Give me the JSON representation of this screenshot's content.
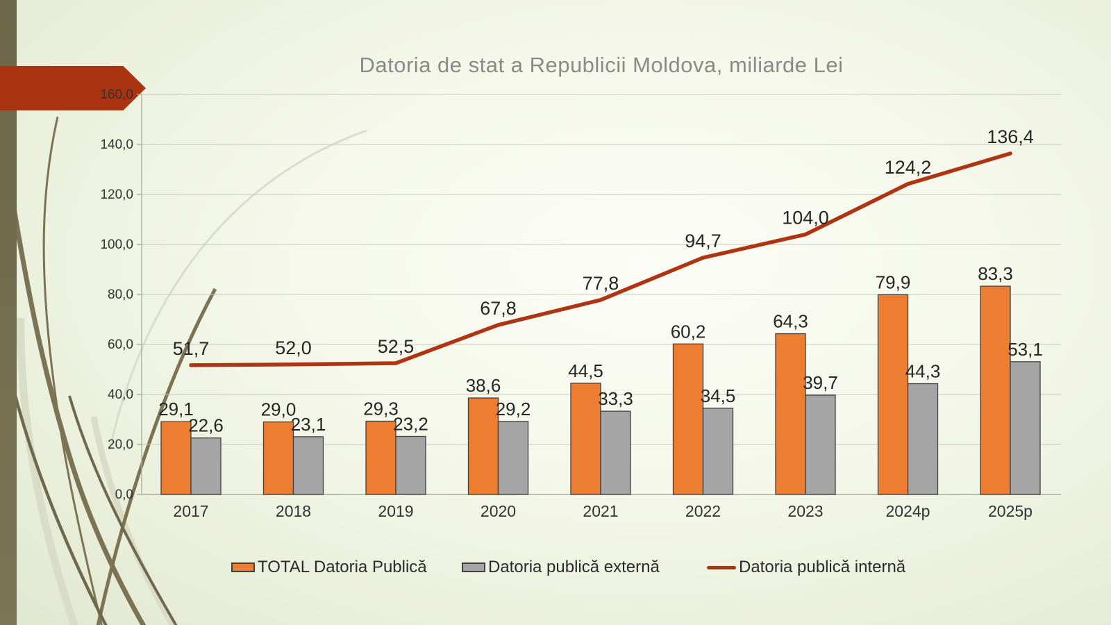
{
  "slide": {
    "title": "Datoria de stat a Republicii Moldova, miliarde Lei"
  },
  "colors": {
    "bar_total": "#ED7D31",
    "bar_externa": "#A5A5A5",
    "line_interna": "#AE3512",
    "bar_border": "#3F3F3F",
    "gridline": "#C6CABB",
    "axis": "#A9AE9D",
    "label_text": "#262626",
    "tick_text": "#333333",
    "title_text": "#8A8A8A",
    "arrow_banner": "#AA3310"
  },
  "chart_data": {
    "type": "bar",
    "subtype": "grouped-bars-with-line",
    "title": "Datoria de stat a Republicii Moldova, miliarde Lei",
    "xlabel": "",
    "ylabel": "",
    "categories": [
      "2017",
      "2018",
      "2019",
      "2020",
      "2021",
      "2022",
      "2023",
      "2024p",
      "2025p"
    ],
    "series": [
      {
        "name": "TOTAL Datoria Publică",
        "type": "bar",
        "color": "#ED7D31",
        "values": [
          29.1,
          29.0,
          29.3,
          38.6,
          44.5,
          60.2,
          64.3,
          79.9,
          83.3
        ],
        "labels": [
          "29,1",
          "29,0",
          "29,3",
          "38,6",
          "44,5",
          "60,2",
          "64,3",
          "79,9",
          "83,3"
        ]
      },
      {
        "name": "Datoria publică externă",
        "type": "bar",
        "color": "#A5A5A5",
        "values": [
          22.6,
          23.1,
          23.2,
          29.2,
          33.3,
          34.5,
          39.7,
          44.3,
          53.1
        ],
        "labels": [
          "22,6",
          "23,1",
          "23,2",
          "29,2",
          "33,3",
          "34,5",
          "39,7",
          "44,3",
          "53,1"
        ]
      },
      {
        "name": "Datoria publică internă",
        "type": "line",
        "color": "#AE3512",
        "values": [
          51.7,
          52.0,
          52.5,
          67.8,
          77.8,
          94.7,
          104.0,
          124.2,
          136.4
        ],
        "labels": [
          "51,7",
          "52,0",
          "52,5",
          "67,8",
          "77,8",
          "94,7",
          "104,0",
          "124,2",
          "136,4"
        ]
      }
    ],
    "y_axis": {
      "min": 0,
      "max": 160,
      "step": 20,
      "tick_labels": [
        "0,0",
        "20,0",
        "40,0",
        "60,0",
        "80,0",
        "100,0",
        "120,0",
        "140,0",
        "160,0"
      ]
    },
    "grid": true,
    "legend_position": "bottom"
  }
}
